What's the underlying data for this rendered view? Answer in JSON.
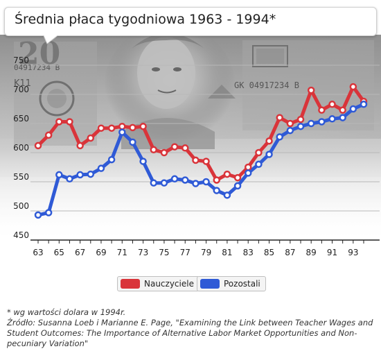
{
  "colors": {
    "teachers": "#d9343a",
    "others": "#2f5ad6",
    "grid": "#b8b8b8",
    "axis": "#222222"
  },
  "chart_data": {
    "type": "line",
    "title": "Średnia płaca tygodniowa 1963 - 1994*",
    "xlabel": "",
    "ylabel": "",
    "ylim": [
      450,
      750
    ],
    "yticks": [
      450,
      500,
      550,
      600,
      650,
      700,
      750
    ],
    "xlim": [
      63,
      94
    ],
    "xticks": [
      "63",
      "65",
      "67",
      "69",
      "71",
      "73",
      "75",
      "77",
      "79",
      "81",
      "83",
      "85",
      "87",
      "89",
      "91",
      "93"
    ],
    "grid": "horizontal",
    "legend_position": "bottom-center",
    "x": [
      63,
      64,
      65,
      66,
      67,
      68,
      69,
      70,
      71,
      72,
      73,
      74,
      75,
      76,
      77,
      78,
      79,
      80,
      81,
      82,
      83,
      84,
      85,
      86,
      87,
      88,
      89,
      90,
      91,
      92,
      93,
      94
    ],
    "series": [
      {
        "name": "Nauczyciele",
        "color_key": "teachers",
        "values": [
          612,
          630,
          653,
          653,
          612,
          625,
          642,
          642,
          645,
          643,
          645,
          605,
          600,
          610,
          608,
          587,
          585,
          553,
          563,
          557,
          575,
          600,
          620,
          660,
          650,
          657,
          707,
          673,
          683,
          673,
          713,
          688
        ]
      },
      {
        "name": "Pozostali",
        "color_key": "others",
        "values": [
          493,
          497,
          562,
          555,
          562,
          563,
          573,
          588,
          635,
          618,
          585,
          548,
          548,
          555,
          553,
          547,
          550,
          535,
          527,
          543,
          565,
          580,
          597,
          627,
          638,
          645,
          650,
          653,
          658,
          660,
          675,
          683
        ]
      }
    ]
  },
  "legend": {
    "teachers": "Nauczyciele",
    "others": "Pozostali"
  },
  "notes": {
    "note": "* wg wartości dolara w 1994r.",
    "source": "Źródło: Susanna Loeb i Marianne E. Page, \"Examining the Link between Teacher Wages and Student Outcomes: The Importance of Alternative Labor Market Opportunities and Non-pecuniary Variation\""
  },
  "background_image": {
    "depicts": "twenty-dollar-bill",
    "visible_text": [
      "20",
      "GK 04917234 B",
      "K11",
      "04917234 B"
    ]
  }
}
